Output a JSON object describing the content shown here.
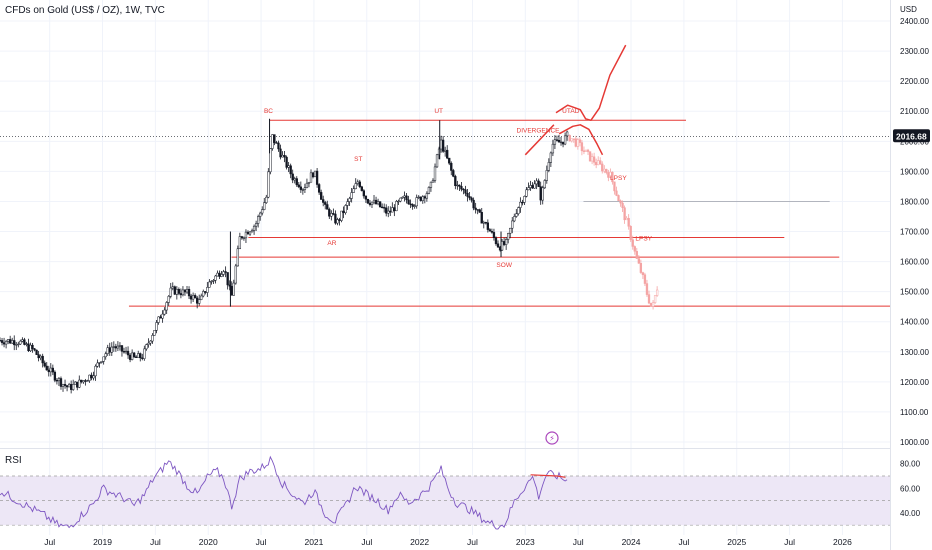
{
  "header": {
    "title": "CFDs on Gold (US$ / OZ), 1W, TVC",
    "currency": "USD"
  },
  "rsi": {
    "label": "RSI"
  },
  "colors": {
    "up": "#131722",
    "projection": "#f4a3a3",
    "annotation": "#e53935",
    "rsi_line": "#7e57c2",
    "rsi_band": "#ede7f6"
  },
  "chart_data": [
    {
      "type": "candlestick",
      "title": "CFDs on Gold (US$ / OZ), 1W, TVC",
      "y_ticks": [
        1000,
        1100,
        1200,
        1300,
        1400,
        1500,
        1600,
        1700,
        1800,
        1900,
        2000,
        2100,
        2200,
        2300,
        2400
      ],
      "y_tick_labels": [
        "1000.00",
        "1100.00",
        "1200.00",
        "1300.00",
        "1400.00",
        "1500.00",
        "1600.00",
        "1700.00",
        "1800.00",
        "1900.00",
        "2000.00",
        "2100.00",
        "2200.00",
        "2300.00",
        "2400.00"
      ],
      "ylim": [
        980,
        2470
      ],
      "x_labels": [
        "Jul",
        "2019",
        "Jul",
        "2020",
        "Jul",
        "2021",
        "Jul",
        "2022",
        "Jul",
        "2023",
        "Jul",
        "2024",
        "Jul",
        "2025",
        "Jul",
        "2026"
      ],
      "x_label_dates": [
        2018.5,
        2019,
        2019.5,
        2020,
        2020.5,
        2021,
        2021.5,
        2022,
        2022.5,
        2023,
        2023.5,
        2024,
        2024.5,
        2025,
        2025.5,
        2026
      ],
      "xlim": [
        2018.03,
        2026.45
      ],
      "last_price": {
        "value": 2016.68,
        "label": "2016.68"
      },
      "price_path": [
        [
          2018.03,
          1338
        ],
        [
          2018.2,
          1335
        ],
        [
          2018.35,
          1305
        ],
        [
          2018.45,
          1255
        ],
        [
          2018.6,
          1200
        ],
        [
          2018.68,
          1180
        ],
        [
          2018.8,
          1200
        ],
        [
          2018.9,
          1225
        ],
        [
          2019.0,
          1285
        ],
        [
          2019.1,
          1320
        ],
        [
          2019.2,
          1300
        ],
        [
          2019.3,
          1278
        ],
        [
          2019.38,
          1285
        ],
        [
          2019.45,
          1345
        ],
        [
          2019.55,
          1420
        ],
        [
          2019.65,
          1505
        ],
        [
          2019.8,
          1495
        ],
        [
          2019.92,
          1465
        ],
        [
          2020.0,
          1525
        ],
        [
          2020.15,
          1580
        ],
        [
          2020.22,
          1480
        ],
        [
          2020.3,
          1680
        ],
        [
          2020.45,
          1725
        ],
        [
          2020.55,
          1815
        ],
        [
          2020.6,
          2020
        ],
        [
          2020.7,
          1950
        ],
        [
          2020.8,
          1880
        ],
        [
          2020.9,
          1845
        ],
        [
          2021.0,
          1900
        ],
        [
          2021.1,
          1780
        ],
        [
          2021.22,
          1730
        ],
        [
          2021.3,
          1780
        ],
        [
          2021.42,
          1870
        ],
        [
          2021.5,
          1805
        ],
        [
          2021.6,
          1790
        ],
        [
          2021.7,
          1760
        ],
        [
          2021.85,
          1810
        ],
        [
          2021.95,
          1795
        ],
        [
          2022.1,
          1840
        ],
        [
          2022.2,
          2000
        ],
        [
          2022.28,
          1920
        ],
        [
          2022.35,
          1850
        ],
        [
          2022.45,
          1830
        ],
        [
          2022.55,
          1760
        ],
        [
          2022.65,
          1710
        ],
        [
          2022.75,
          1650
        ],
        [
          2022.82,
          1660
        ],
        [
          2022.9,
          1760
        ],
        [
          2023.0,
          1830
        ],
        [
          2023.1,
          1870
        ],
        [
          2023.15,
          1810
        ],
        [
          2023.25,
          1990
        ],
        [
          2023.35,
          2000
        ],
        [
          2023.4,
          2020
        ]
      ],
      "projection_path": [
        [
          2023.4,
          2020
        ],
        [
          2023.5,
          1990
        ],
        [
          2023.6,
          1950
        ],
        [
          2023.7,
          1920
        ],
        [
          2023.8,
          1890
        ],
        [
          2023.85,
          1840
        ],
        [
          2023.9,
          1790
        ],
        [
          2023.95,
          1740
        ],
        [
          2024.0,
          1680
        ],
        [
          2024.05,
          1610
        ],
        [
          2024.1,
          1560
        ],
        [
          2024.15,
          1495
        ],
        [
          2024.2,
          1440
        ],
        [
          2024.25,
          1520
        ]
      ],
      "levels": [
        {
          "price": 2070,
          "from": 2020.58,
          "to": 2024.52,
          "color": "#e53935"
        },
        {
          "price": 1680,
          "from": 2020.38,
          "to": 2025.45,
          "color": "#e53935"
        },
        {
          "price": 1615,
          "from": 2020.22,
          "to": 2025.97,
          "color": "#e53935"
        },
        {
          "price": 1452,
          "from": 2019.25,
          "to": 2026.45,
          "color": "#e53935"
        },
        {
          "price": 1800,
          "from": 2023.55,
          "to": 2025.88,
          "color": "#b2b5be"
        }
      ],
      "annotations": [
        {
          "text": "BC",
          "x": 2020.57,
          "y": 2095
        },
        {
          "text": "UT",
          "x": 2022.18,
          "y": 2095
        },
        {
          "text": "ST",
          "x": 2021.42,
          "y": 1935
        },
        {
          "text": "AR",
          "x": 2021.17,
          "y": 1655
        },
        {
          "text": "SOW",
          "x": 2022.8,
          "y": 1582
        },
        {
          "text": "UTAD",
          "x": 2023.43,
          "y": 2094
        },
        {
          "text": "DIVERGENCE",
          "x": 2023.12,
          "y": 2030
        },
        {
          "text": "LPSY",
          "x": 2023.88,
          "y": 1872
        },
        {
          "text": "LPSY",
          "x": 2024.12,
          "y": 1670
        }
      ],
      "utad_curve": [
        [
          2023.29,
          2095
        ],
        [
          2023.4,
          2120
        ],
        [
          2023.52,
          2105
        ],
        [
          2023.57,
          2075
        ],
        [
          2023.62,
          2070
        ],
        [
          2023.7,
          2110
        ],
        [
          2023.8,
          2220
        ],
        [
          2023.95,
          2320
        ]
      ],
      "decline_curve": [
        [
          2023.32,
          2025
        ],
        [
          2023.45,
          2050
        ],
        [
          2023.52,
          2055
        ],
        [
          2023.6,
          2040
        ],
        [
          2023.68,
          1990
        ],
        [
          2023.73,
          1955
        ]
      ],
      "divergence_line": [
        [
          2023.0,
          1955
        ],
        [
          2023.27,
          2055
        ]
      ]
    },
    {
      "type": "line",
      "title": "RSI",
      "y_ticks": [
        40,
        60,
        80
      ],
      "y_tick_labels": [
        "40.00",
        "60.00",
        "80.00"
      ],
      "ylim": [
        22,
        92
      ],
      "band": [
        30,
        70
      ],
      "rsi_path": [
        [
          2018.03,
          58
        ],
        [
          2018.15,
          52
        ],
        [
          2018.3,
          45
        ],
        [
          2018.45,
          38
        ],
        [
          2018.58,
          30
        ],
        [
          2018.68,
          28
        ],
        [
          2018.8,
          38
        ],
        [
          2018.92,
          48
        ],
        [
          2019.0,
          60
        ],
        [
          2019.1,
          56
        ],
        [
          2019.2,
          52
        ],
        [
          2019.3,
          46
        ],
        [
          2019.4,
          55
        ],
        [
          2019.48,
          68
        ],
        [
          2019.55,
          74
        ],
        [
          2019.62,
          82
        ],
        [
          2019.7,
          75
        ],
        [
          2019.8,
          62
        ],
        [
          2019.9,
          55
        ],
        [
          2020.0,
          70
        ],
        [
          2020.08,
          74
        ],
        [
          2020.15,
          68
        ],
        [
          2020.22,
          45
        ],
        [
          2020.3,
          68
        ],
        [
          2020.4,
          74
        ],
        [
          2020.5,
          76
        ],
        [
          2020.6,
          84
        ],
        [
          2020.7,
          64
        ],
        [
          2020.8,
          55
        ],
        [
          2020.9,
          48
        ],
        [
          2021.0,
          58
        ],
        [
          2021.1,
          40
        ],
        [
          2021.2,
          33
        ],
        [
          2021.3,
          46
        ],
        [
          2021.4,
          62
        ],
        [
          2021.5,
          55
        ],
        [
          2021.6,
          50
        ],
        [
          2021.7,
          42
        ],
        [
          2021.8,
          55
        ],
        [
          2021.9,
          48
        ],
        [
          2022.0,
          54
        ],
        [
          2022.1,
          62
        ],
        [
          2022.2,
          76
        ],
        [
          2022.28,
          58
        ],
        [
          2022.35,
          48
        ],
        [
          2022.45,
          44
        ],
        [
          2022.55,
          38
        ],
        [
          2022.65,
          32
        ],
        [
          2022.72,
          30
        ],
        [
          2022.8,
          30
        ],
        [
          2022.9,
          50
        ],
        [
          2023.0,
          62
        ],
        [
          2023.08,
          70
        ],
        [
          2023.12,
          52
        ],
        [
          2023.2,
          72
        ],
        [
          2023.3,
          70
        ],
        [
          2023.4,
          66
        ]
      ],
      "rsi_divergence": [
        [
          2023.05,
          71
        ],
        [
          2023.3,
          70
        ],
        [
          2023.38,
          69
        ]
      ]
    }
  ]
}
